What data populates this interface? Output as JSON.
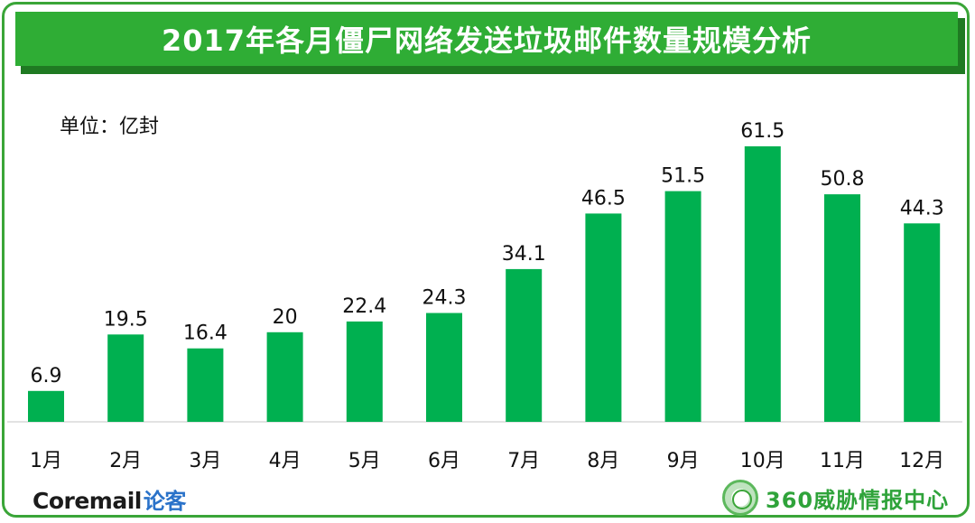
{
  "title": "2017年各月僵尸网络发送垃圾邮件数量规模分析",
  "unit_label": "单位：亿封",
  "colors": {
    "bar": "#00b050",
    "title_bg": "#2fad35",
    "frame": "#3aa538"
  },
  "footer": {
    "left_brand": "Coremail",
    "left_brand_cn": "论客",
    "right_brand": "360威胁情报中心",
    "right_logo_icon": "globe-emblem-icon"
  },
  "chart_data": {
    "type": "bar",
    "title": "2017年各月僵尸网络发送垃圾邮件数量规模分析",
    "unit": "单位：亿封",
    "categories": [
      "1月",
      "2月",
      "3月",
      "4月",
      "5月",
      "6月",
      "7月",
      "8月",
      "9月",
      "10月",
      "11月",
      "12月"
    ],
    "values": [
      6.9,
      19.5,
      16.4,
      20,
      22.4,
      24.3,
      34.1,
      46.5,
      51.5,
      61.5,
      50.8,
      44.3
    ],
    "data_labels": [
      "6.9",
      "19.5",
      "16.4",
      "20",
      "22.4",
      "24.3",
      "34.1",
      "46.5",
      "51.5",
      "61.5",
      "50.8",
      "44.3"
    ],
    "ylim": [
      0,
      61.5
    ],
    "grid": false,
    "legend": "none"
  }
}
